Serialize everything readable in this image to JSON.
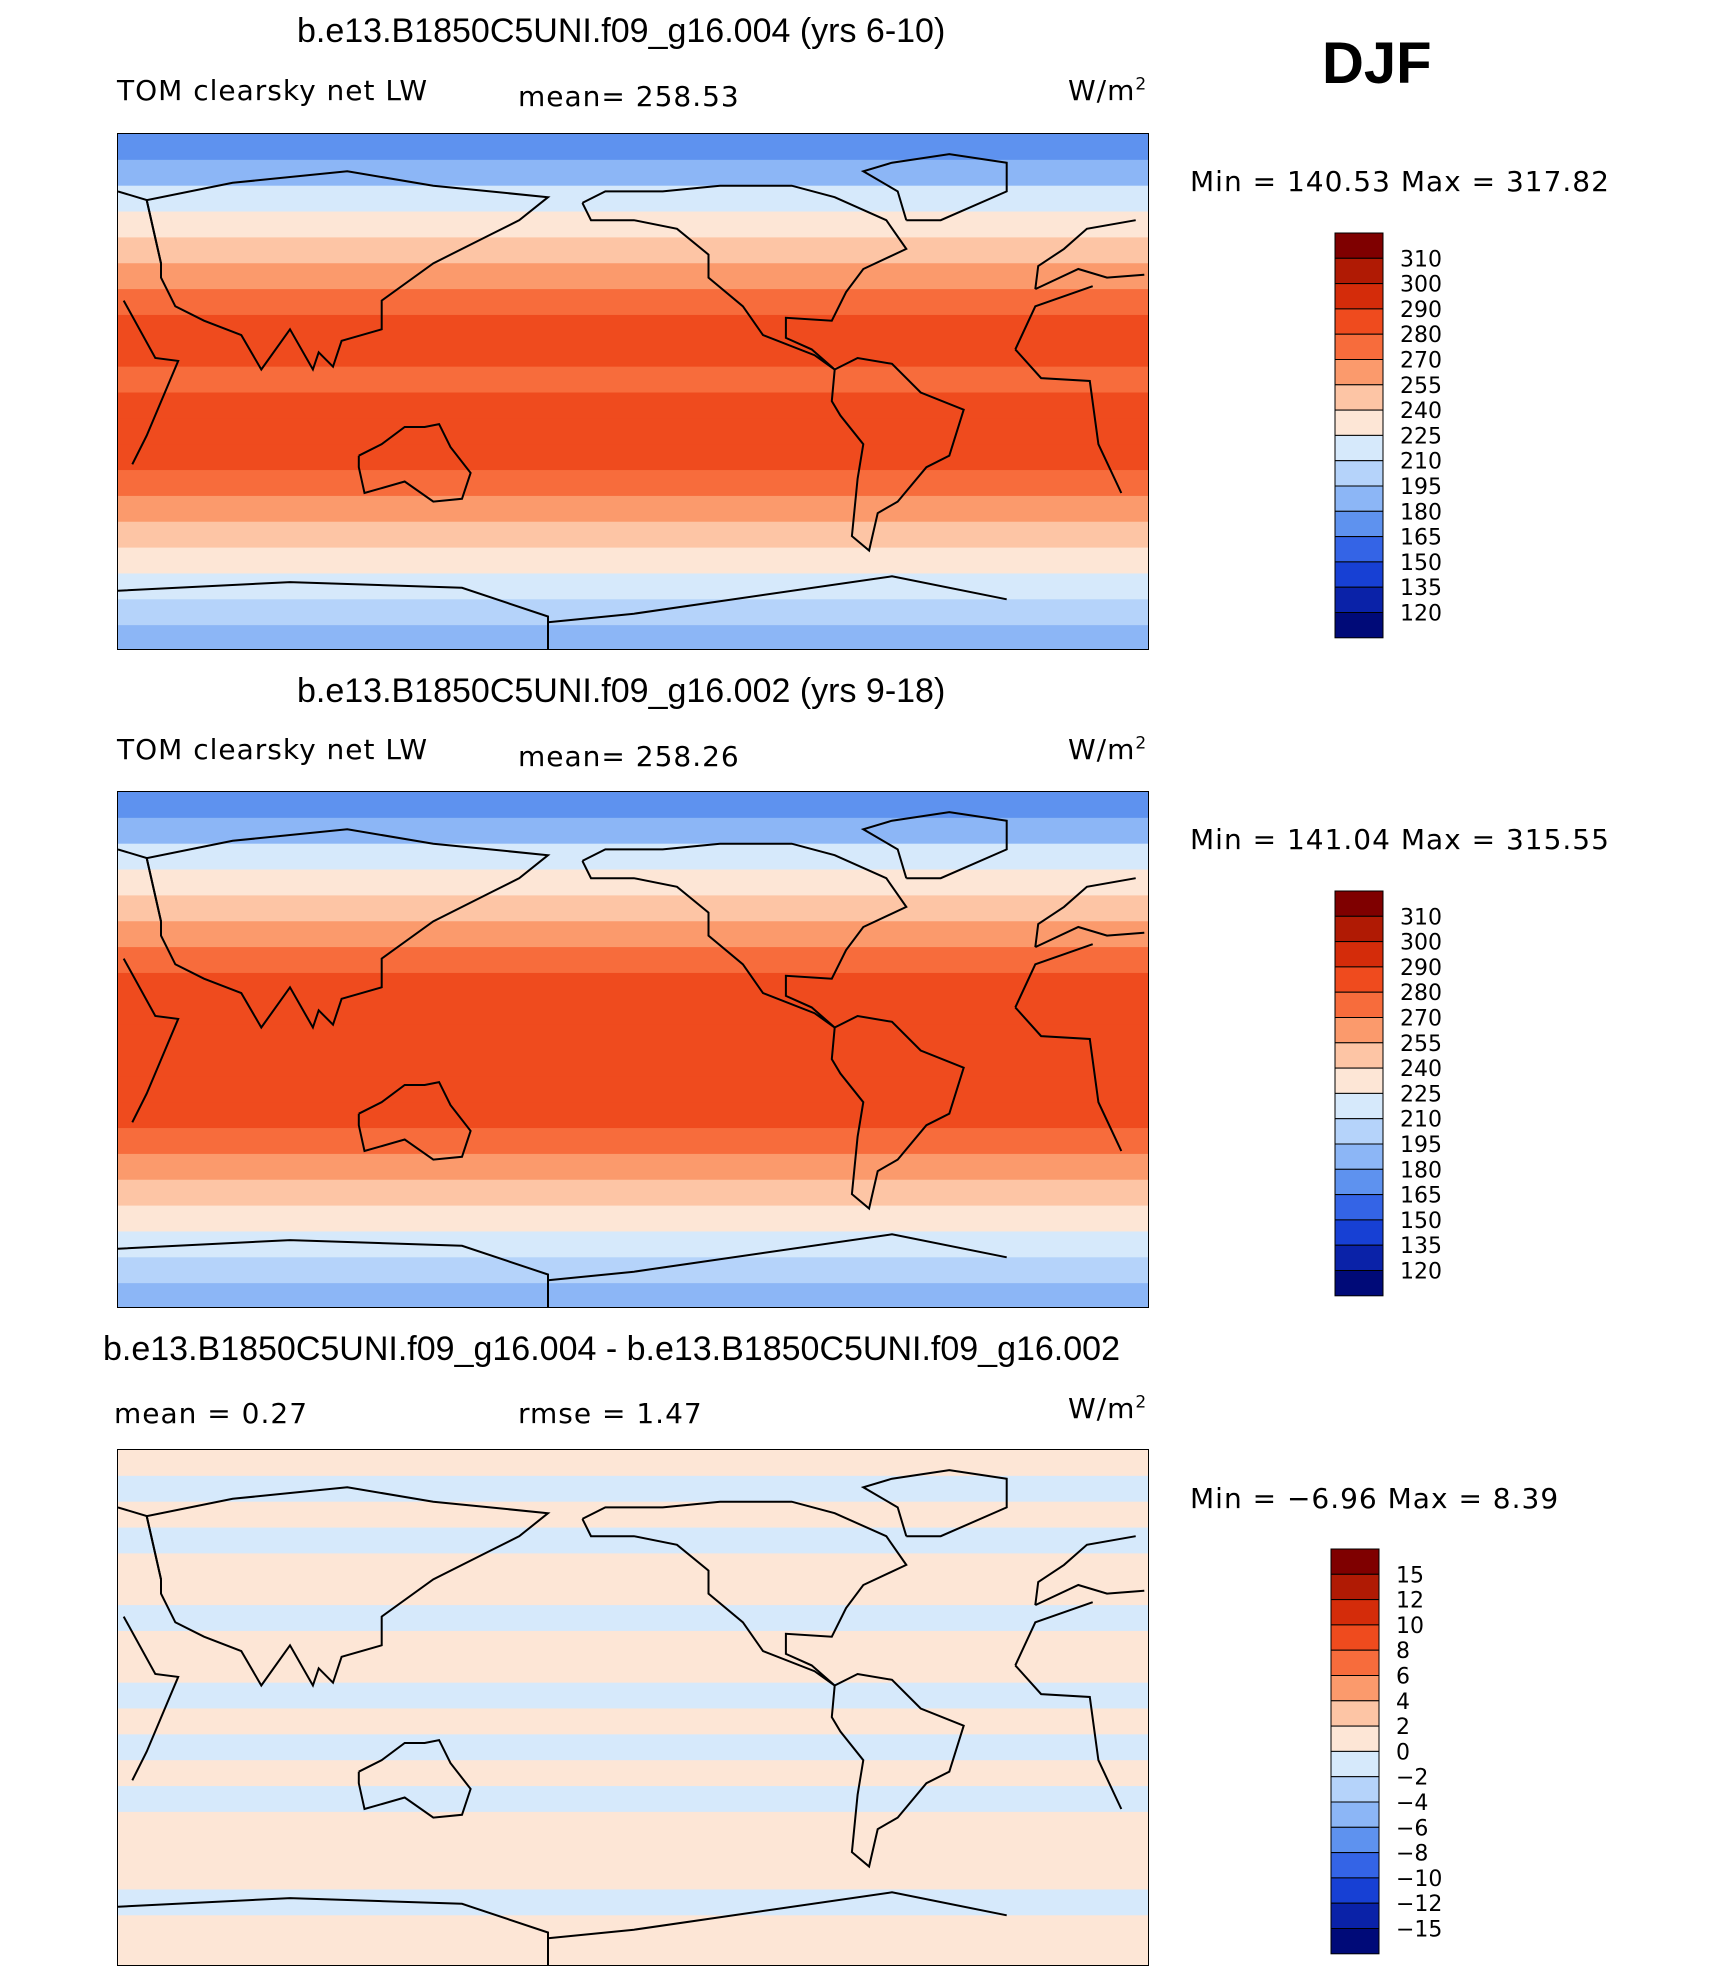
{
  "season": "DJF",
  "units": "W/m",
  "units_sup": "2",
  "panels": [
    {
      "title": "b.e13.B1850C5UNI.f09_g16.004 (yrs 6-10)",
      "left_label": "TOM clearsky net LW",
      "center_label": "mean= 258.53",
      "minmax": "Min  =  140.53  Max  =  317.82"
    },
    {
      "title": "b.e13.B1850C5UNI.f09_g16.002 (yrs 9-18)",
      "left_label": "TOM clearsky net LW",
      "center_label": "mean= 258.26",
      "minmax": "Min  =  141.04  Max  =  315.55"
    },
    {
      "title": "b.e13.B1850C5UNI.f09_g16.004 - b.e13.B1850C5UNI.f09_g16.002",
      "left_label": "mean  =     0.27",
      "center_label": "rmse  =     1.47",
      "minmax": "Min  =   −6.96  Max  =      8.39"
    }
  ],
  "chart_data": [
    {
      "type": "heatmap",
      "title": "b.e13.B1850C5UNI.f09_g16.004 (yrs 6-10)",
      "variable": "TOM clearsky net LW",
      "mean": 258.53,
      "min": 140.53,
      "max": 317.82,
      "units": "W/m2",
      "colorbar_levels": [
        310,
        300,
        290,
        280,
        270,
        255,
        240,
        225,
        210,
        195,
        180,
        165,
        150,
        135,
        120
      ],
      "colors": [
        "#7f0000",
        "#b01a04",
        "#d42c0a",
        "#ef4b1e",
        "#f76c3c",
        "#fb9a6c",
        "#fdc5a5",
        "#fde6d6",
        "#d6e9fb",
        "#b5d3fa",
        "#8cb6f6",
        "#5e92ef",
        "#3464e6",
        "#1740d4",
        "#0a22a8",
        "#000a78"
      ],
      "band_profile": [
        175,
        195,
        215,
        235,
        250,
        265,
        275,
        283,
        287,
        280,
        283,
        287,
        282,
        272,
        258,
        245,
        232,
        218,
        200,
        185
      ]
    },
    {
      "type": "heatmap",
      "title": "b.e13.B1850C5UNI.f09_g16.002 (yrs 9-18)",
      "variable": "TOM clearsky net LW",
      "mean": 258.26,
      "min": 141.04,
      "max": 315.55,
      "units": "W/m2",
      "colorbar_levels": [
        310,
        300,
        290,
        280,
        270,
        255,
        240,
        225,
        210,
        195,
        180,
        165,
        150,
        135,
        120
      ],
      "colors": [
        "#7f0000",
        "#b01a04",
        "#d42c0a",
        "#ef4b1e",
        "#f76c3c",
        "#fb9a6c",
        "#fdc5a5",
        "#fde6d6",
        "#d6e9fb",
        "#b5d3fa",
        "#8cb6f6",
        "#5e92ef",
        "#3464e6",
        "#1740d4",
        "#0a22a8",
        "#000a78"
      ],
      "band_profile": [
        172,
        193,
        213,
        233,
        249,
        264,
        275,
        283,
        288,
        281,
        283,
        288,
        283,
        272,
        258,
        245,
        232,
        218,
        200,
        182
      ]
    },
    {
      "type": "heatmap",
      "title": "b.e13.B1850C5UNI.f09_g16.004 - b.e13.B1850C5UNI.f09_g16.002",
      "mean": 0.27,
      "rmse": 1.47,
      "min": -6.96,
      "max": 8.39,
      "units": "W/m2",
      "colorbar_levels": [
        15,
        12,
        10,
        8,
        6,
        4,
        2,
        0,
        -2,
        -4,
        -6,
        -8,
        -10,
        -12,
        -15
      ],
      "colors": [
        "#7f0000",
        "#b01a04",
        "#d42c0a",
        "#ef4b1e",
        "#f76c3c",
        "#fb9a6c",
        "#fdc5a5",
        "#fde6d6",
        "#d6e9fb",
        "#b5d3fa",
        "#8cb6f6",
        "#5e92ef",
        "#3464e6",
        "#1740d4",
        "#0a22a8",
        "#000a78"
      ],
      "band_profile": [
        1,
        -1,
        0.5,
        -0.5,
        1,
        0.5,
        -0.5,
        0.5,
        1,
        -1,
        1.5,
        -0.5,
        0.5,
        -0.5,
        0.5,
        0.5,
        0.5,
        -0.5,
        1,
        1
      ]
    }
  ]
}
